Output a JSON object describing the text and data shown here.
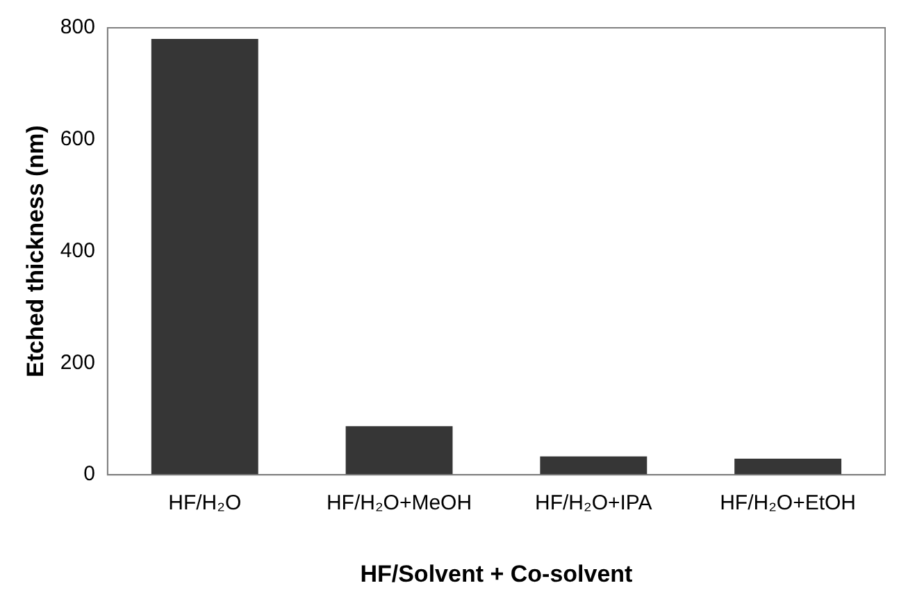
{
  "chart_data": {
    "type": "bar",
    "xlabel": "HF/Solvent + Co-solvent",
    "ylabel": "Etched thickness (nm)",
    "categories": [
      "HF/H₂O",
      "HF/H₂O+MeOH",
      "HF/H₂O+IPA",
      "HF/H₂O+EtOH"
    ],
    "values": [
      780,
      87,
      33,
      29
    ],
    "color": "#363636",
    "ylim": [
      0,
      800
    ],
    "yticks": [
      0,
      200,
      400,
      600,
      800
    ],
    "grid": false,
    "legend": false
  }
}
